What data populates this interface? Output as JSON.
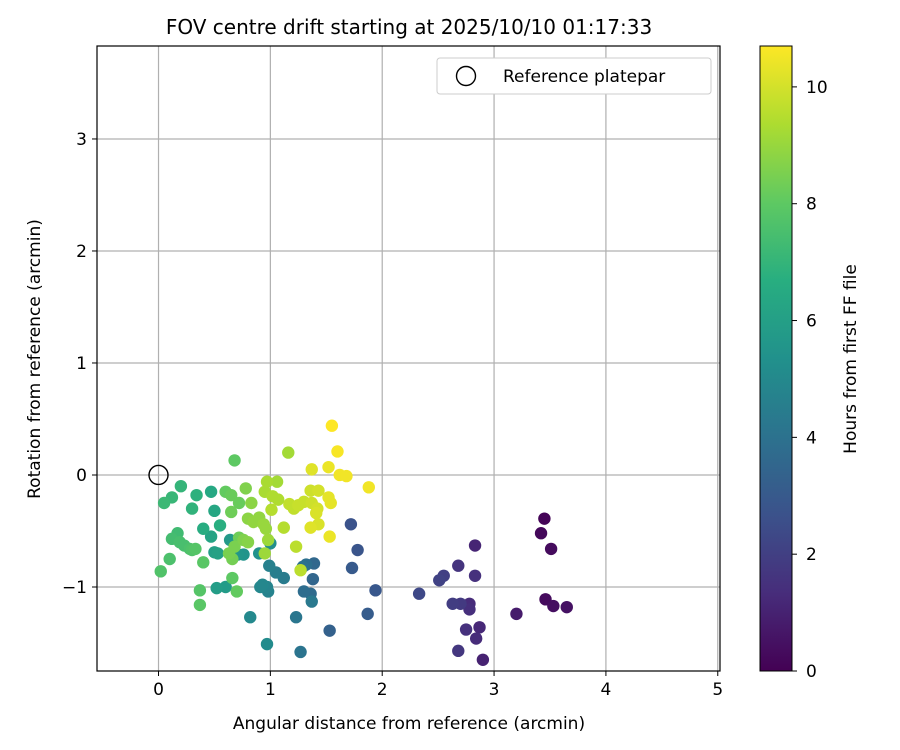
{
  "chart_data": {
    "type": "scatter",
    "title": "FOV centre drift starting at 2025/10/10 01:17:33",
    "xlabel": "Angular distance from reference (arcmin)",
    "ylabel": "Rotation from reference (arcmin)",
    "xlim": [
      -0.55,
      5.02
    ],
    "ylim": [
      -1.75,
      3.83
    ],
    "xticks": [
      0,
      1,
      2,
      3,
      4,
      5
    ],
    "yticks": [
      -1,
      0,
      1,
      2,
      3
    ],
    "grid": true,
    "legend": {
      "placement": "top-right",
      "label": "Reference platepar",
      "marker": "open-circle"
    },
    "reference_point": {
      "x": 0,
      "y": 0
    },
    "colorbar": {
      "label": "Hours from first FF file",
      "colormap": "viridis",
      "range": [
        0,
        10.7
      ],
      "ticks": [
        0,
        2,
        4,
        6,
        8,
        10
      ]
    },
    "points": [
      {
        "x": 3.45,
        "y": -0.39,
        "h": 0.1
      },
      {
        "x": 3.42,
        "y": -0.52,
        "h": 0.2
      },
      {
        "x": 3.51,
        "y": -0.66,
        "h": 0.3
      },
      {
        "x": 3.46,
        "y": -1.11,
        "h": 0.3
      },
      {
        "x": 3.53,
        "y": -1.17,
        "h": 0.4
      },
      {
        "x": 3.65,
        "y": -1.18,
        "h": 0.5
      },
      {
        "x": 3.2,
        "y": -1.24,
        "h": 0.8
      },
      {
        "x": 2.9,
        "y": -1.65,
        "h": 1.0
      },
      {
        "x": 2.83,
        "y": -0.63,
        "h": 1.1
      },
      {
        "x": 2.87,
        "y": -1.36,
        "h": 1.2
      },
      {
        "x": 2.84,
        "y": -1.46,
        "h": 1.3
      },
      {
        "x": 2.78,
        "y": -1.15,
        "h": 1.3
      },
      {
        "x": 2.78,
        "y": -1.2,
        "h": 1.4
      },
      {
        "x": 2.75,
        "y": -1.38,
        "h": 1.5
      },
      {
        "x": 2.83,
        "y": -0.9,
        "h": 1.5
      },
      {
        "x": 2.68,
        "y": -0.81,
        "h": 1.6
      },
      {
        "x": 2.68,
        "y": -1.57,
        "h": 1.7
      },
      {
        "x": 2.7,
        "y": -1.15,
        "h": 1.8
      },
      {
        "x": 2.63,
        "y": -1.15,
        "h": 1.9
      },
      {
        "x": 2.55,
        "y": -0.9,
        "h": 2.0
      },
      {
        "x": 2.51,
        "y": -0.94,
        "h": 2.1
      },
      {
        "x": 2.33,
        "y": -1.06,
        "h": 2.3
      },
      {
        "x": 1.72,
        "y": -0.44,
        "h": 2.7
      },
      {
        "x": 1.78,
        "y": -0.67,
        "h": 2.8
      },
      {
        "x": 1.94,
        "y": -1.03,
        "h": 2.9
      },
      {
        "x": 1.73,
        "y": -0.83,
        "h": 3.0
      },
      {
        "x": 1.87,
        "y": -1.24,
        "h": 3.1
      },
      {
        "x": 1.53,
        "y": -1.39,
        "h": 3.3
      },
      {
        "x": 1.38,
        "y": -0.93,
        "h": 3.5
      },
      {
        "x": 1.39,
        "y": -0.79,
        "h": 3.6
      },
      {
        "x": 1.36,
        "y": -1.06,
        "h": 3.7
      },
      {
        "x": 1.3,
        "y": -1.04,
        "h": 3.8
      },
      {
        "x": 1.32,
        "y": -0.8,
        "h": 3.9
      },
      {
        "x": 1.29,
        "y": -0.82,
        "h": 4.0
      },
      {
        "x": 1.27,
        "y": -1.58,
        "h": 4.1
      },
      {
        "x": 1.23,
        "y": -1.27,
        "h": 4.2
      },
      {
        "x": 1.37,
        "y": -1.13,
        "h": 4.3
      },
      {
        "x": 1.12,
        "y": -0.92,
        "h": 4.4
      },
      {
        "x": 1.05,
        "y": -0.87,
        "h": 4.5
      },
      {
        "x": 0.99,
        "y": -0.81,
        "h": 4.6
      },
      {
        "x": 0.98,
        "y": -1.04,
        "h": 4.7
      },
      {
        "x": 0.97,
        "y": -1.0,
        "h": 4.8
      },
      {
        "x": 0.93,
        "y": -0.98,
        "h": 4.9
      },
      {
        "x": 0.91,
        "y": -1.0,
        "h": 4.9
      },
      {
        "x": 0.82,
        "y": -1.27,
        "h": 5.0
      },
      {
        "x": 0.97,
        "y": -1.51,
        "h": 5.1
      },
      {
        "x": 1.0,
        "y": -0.61,
        "h": 5.2
      },
      {
        "x": 0.9,
        "y": -0.7,
        "h": 5.4
      },
      {
        "x": 0.76,
        "y": -0.71,
        "h": 5.5
      },
      {
        "x": 0.71,
        "y": -0.71,
        "h": 5.6
      },
      {
        "x": 0.64,
        "y": -0.58,
        "h": 5.7
      },
      {
        "x": 0.6,
        "y": -1.0,
        "h": 5.8
      },
      {
        "x": 0.52,
        "y": -1.01,
        "h": 5.9
      },
      {
        "x": 0.5,
        "y": -0.69,
        "h": 6.0
      },
      {
        "x": 0.53,
        "y": -0.7,
        "h": 6.1
      },
      {
        "x": 0.47,
        "y": -0.55,
        "h": 6.2
      },
      {
        "x": 0.5,
        "y": -0.32,
        "h": 6.3
      },
      {
        "x": 0.47,
        "y": -0.15,
        "h": 6.4
      },
      {
        "x": 0.4,
        "y": -0.48,
        "h": 6.6
      },
      {
        "x": 0.55,
        "y": -0.45,
        "h": 6.7
      },
      {
        "x": 0.34,
        "y": -0.18,
        "h": 6.8
      },
      {
        "x": 0.3,
        "y": -0.3,
        "h": 6.9
      },
      {
        "x": 0.2,
        "y": -0.1,
        "h": 7.0
      },
      {
        "x": 0.12,
        "y": -0.2,
        "h": 7.1
      },
      {
        "x": 0.05,
        "y": -0.25,
        "h": 7.2
      },
      {
        "x": 0.17,
        "y": -0.52,
        "h": 7.3
      },
      {
        "x": 0.12,
        "y": -0.57,
        "h": 7.4
      },
      {
        "x": 0.19,
        "y": -0.6,
        "h": 7.5
      },
      {
        "x": 0.23,
        "y": -0.63,
        "h": 7.5
      },
      {
        "x": 0.28,
        "y": -0.66,
        "h": 7.6
      },
      {
        "x": 0.1,
        "y": -0.75,
        "h": 7.6
      },
      {
        "x": 0.02,
        "y": -0.86,
        "h": 7.7
      },
      {
        "x": 0.3,
        "y": -0.67,
        "h": 7.7
      },
      {
        "x": 0.33,
        "y": -0.66,
        "h": 7.8
      },
      {
        "x": 0.37,
        "y": -1.03,
        "h": 7.8
      },
      {
        "x": 0.37,
        "y": -1.16,
        "h": 7.9
      },
      {
        "x": 0.4,
        "y": -0.78,
        "h": 7.9
      },
      {
        "x": 0.68,
        "y": 0.13,
        "h": 8.0
      },
      {
        "x": 0.66,
        "y": -0.92,
        "h": 8.0
      },
      {
        "x": 0.7,
        "y": -1.04,
        "h": 8.1
      },
      {
        "x": 0.6,
        "y": -0.15,
        "h": 8.1
      },
      {
        "x": 0.65,
        "y": -0.18,
        "h": 8.2
      },
      {
        "x": 0.72,
        "y": -0.25,
        "h": 8.2
      },
      {
        "x": 0.65,
        "y": -0.33,
        "h": 8.3
      },
      {
        "x": 0.72,
        "y": -0.56,
        "h": 8.3
      },
      {
        "x": 0.66,
        "y": -0.75,
        "h": 8.4
      },
      {
        "x": 0.63,
        "y": -0.7,
        "h": 8.5
      },
      {
        "x": 0.68,
        "y": -0.64,
        "h": 8.5
      },
      {
        "x": 0.78,
        "y": -0.12,
        "h": 8.6
      },
      {
        "x": 0.76,
        "y": -0.58,
        "h": 8.6
      },
      {
        "x": 0.8,
        "y": -0.6,
        "h": 8.7
      },
      {
        "x": 0.83,
        "y": -0.25,
        "h": 8.8
      },
      {
        "x": 0.8,
        "y": -0.39,
        "h": 8.8
      },
      {
        "x": 0.85,
        "y": -0.42,
        "h": 8.9
      },
      {
        "x": 0.9,
        "y": -0.38,
        "h": 8.9
      },
      {
        "x": 0.94,
        "y": -0.44,
        "h": 9.0
      },
      {
        "x": 0.96,
        "y": -0.48,
        "h": 9.0
      },
      {
        "x": 0.98,
        "y": -0.58,
        "h": 9.1
      },
      {
        "x": 0.95,
        "y": -0.7,
        "h": 9.1
      },
      {
        "x": 1.16,
        "y": 0.2,
        "h": 9.2
      },
      {
        "x": 1.06,
        "y": -0.06,
        "h": 9.2
      },
      {
        "x": 0.97,
        "y": -0.06,
        "h": 9.3
      },
      {
        "x": 0.95,
        "y": -0.15,
        "h": 9.3
      },
      {
        "x": 1.02,
        "y": -0.19,
        "h": 9.4
      },
      {
        "x": 1.07,
        "y": -0.22,
        "h": 9.4
      },
      {
        "x": 1.01,
        "y": -0.31,
        "h": 9.5
      },
      {
        "x": 1.12,
        "y": -0.47,
        "h": 9.5
      },
      {
        "x": 1.23,
        "y": -0.64,
        "h": 9.6
      },
      {
        "x": 1.27,
        "y": -0.85,
        "h": 9.6
      },
      {
        "x": 1.17,
        "y": -0.26,
        "h": 9.7
      },
      {
        "x": 1.21,
        "y": -0.3,
        "h": 9.7
      },
      {
        "x": 1.25,
        "y": -0.27,
        "h": 9.8
      },
      {
        "x": 1.3,
        "y": -0.24,
        "h": 9.8
      },
      {
        "x": 1.36,
        "y": -0.14,
        "h": 9.9
      },
      {
        "x": 1.37,
        "y": -0.25,
        "h": 9.9
      },
      {
        "x": 1.43,
        "y": -0.14,
        "h": 10.0
      },
      {
        "x": 1.42,
        "y": -0.3,
        "h": 10.0
      },
      {
        "x": 1.41,
        "y": -0.34,
        "h": 10.1
      },
      {
        "x": 1.43,
        "y": -0.44,
        "h": 10.1
      },
      {
        "x": 1.36,
        "y": -0.47,
        "h": 10.2
      },
      {
        "x": 1.37,
        "y": 0.05,
        "h": 10.2
      },
      {
        "x": 1.52,
        "y": -0.2,
        "h": 10.3
      },
      {
        "x": 1.54,
        "y": -0.25,
        "h": 10.3
      },
      {
        "x": 1.53,
        "y": -0.55,
        "h": 10.4
      },
      {
        "x": 1.52,
        "y": 0.07,
        "h": 10.4
      },
      {
        "x": 1.62,
        "y": 0.0,
        "h": 10.5
      },
      {
        "x": 1.68,
        "y": -0.01,
        "h": 10.5
      },
      {
        "x": 1.88,
        "y": -0.11,
        "h": 10.5
      },
      {
        "x": 1.6,
        "y": 0.21,
        "h": 10.6
      },
      {
        "x": 1.55,
        "y": 0.44,
        "h": 10.7
      }
    ]
  }
}
